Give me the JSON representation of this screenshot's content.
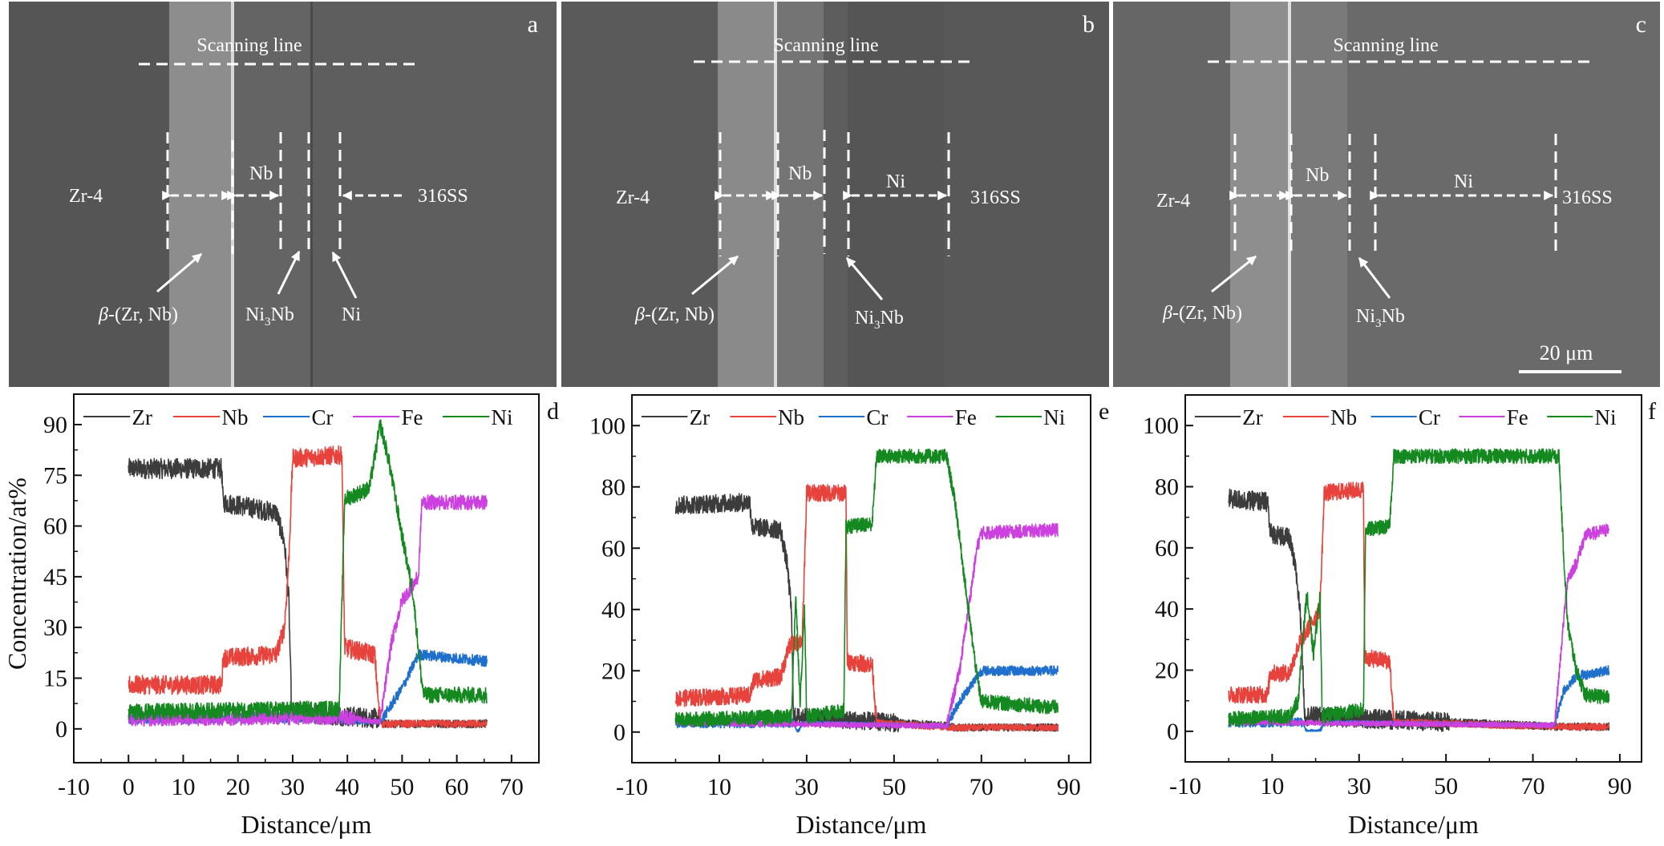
{
  "figure": {
    "sem_panels": [
      {
        "id": "a",
        "letter": "a",
        "scan_label": "Scanning line",
        "labels": {
          "left": "Zr-4",
          "right": "316SS",
          "nb": "Nb",
          "ni": "",
          "beta": "β-(Zr, Nb)",
          "beta_prefix": "β",
          "beta_rest": "-(Zr, Nb)",
          "ni3nb": "Ni",
          "ni3nb_sub": "3",
          "ni3nb_tail": "Nb",
          "ni_arrow": "Ni"
        },
        "background": "#5e5e5e"
      },
      {
        "id": "b",
        "letter": "b",
        "scan_label": "Scanning line",
        "labels": {
          "left": "Zr-4",
          "right": "316SS",
          "nb": "Nb",
          "ni": "Ni",
          "beta_prefix": "β",
          "beta_rest": "-(Zr, Nb)",
          "ni3nb": "Ni",
          "ni3nb_sub": "3",
          "ni3nb_tail": "Nb"
        },
        "background": "#585858"
      },
      {
        "id": "c",
        "letter": "c",
        "scan_label": "Scanning line",
        "labels": {
          "left": "Zr-4",
          "right": "316SS",
          "nb": "Nb",
          "ni": "Ni",
          "beta_prefix": "β",
          "beta_rest": "-(Zr, Nb)",
          "ni3nb": "Ni",
          "ni3nb_sub": "3",
          "ni3nb_tail": "Nb"
        },
        "scale_bar": "20 μm",
        "background": "#6a6a6a"
      }
    ]
  },
  "colors": {
    "Zr": "#3c3c3c",
    "Nb": "#e8423c",
    "Cr": "#1f6fcc",
    "Fe": "#cc40e0",
    "Ni": "#14891f"
  },
  "chart_data": [
    {
      "id": "d",
      "panel_letter": "d",
      "type": "line",
      "title": "",
      "xlabel": "Distance/μm",
      "ylabel": "Concentration/at%",
      "xlim": [
        -10,
        75
      ],
      "ylim": [
        -10,
        99
      ],
      "xticks": [
        -10,
        0,
        10,
        20,
        30,
        40,
        50,
        60,
        70
      ],
      "xtick_labels": [
        "-10",
        "0",
        "10",
        "20",
        "30",
        "40",
        "50",
        "60",
        "70"
      ],
      "yticks": [
        0,
        15,
        30,
        45,
        60,
        75,
        90
      ],
      "ytick_labels": [
        "0",
        "15",
        "30",
        "45",
        "60",
        "75",
        "90"
      ],
      "legend": [
        "Zr",
        "Nb",
        "Cr",
        "Fe",
        "Ni"
      ],
      "legend_position": "top",
      "grid": false,
      "series": [
        {
          "name": "Zr",
          "points": [
            [
              0,
              77
            ],
            [
              17,
              77
            ],
            [
              17.3,
              67
            ],
            [
              27,
              64
            ],
            [
              28.5,
              55
            ],
            [
              29.3,
              38
            ],
            [
              29.8,
              5
            ],
            [
              46,
              3
            ],
            [
              46.3,
              1.5
            ],
            [
              65.5,
              1.5
            ]
          ],
          "noise": 3
        },
        {
          "name": "Nb",
          "points": [
            [
              0,
              13
            ],
            [
              17,
              13
            ],
            [
              17.3,
              21
            ],
            [
              27,
              22
            ],
            [
              28.5,
              30
            ],
            [
              29.3,
              50
            ],
            [
              30,
              80
            ],
            [
              39,
              81
            ],
            [
              39.5,
              24
            ],
            [
              45,
              22
            ],
            [
              45.8,
              5
            ],
            [
              46.3,
              1.5
            ],
            [
              65.5,
              1.5
            ]
          ],
          "noise": 2.8
        },
        {
          "name": "Cr",
          "points": [
            [
              0,
              3
            ],
            [
              38,
              3.5
            ],
            [
              39.5,
              2
            ],
            [
              46,
              2
            ],
            [
              50,
              12
            ],
            [
              53,
              22
            ],
            [
              65.5,
              20
            ]
          ],
          "noise": 1.6
        },
        {
          "name": "Fe",
          "points": [
            [
              0,
              3
            ],
            [
              39,
              3.5
            ],
            [
              46,
              2
            ],
            [
              48,
              25
            ],
            [
              50,
              38
            ],
            [
              53,
              45
            ],
            [
              53.6,
              67
            ],
            [
              65.5,
              67
            ]
          ],
          "noise": 2.2
        },
        {
          "name": "Ni",
          "points": [
            [
              0,
              5
            ],
            [
              38.5,
              6
            ],
            [
              39.5,
              68
            ],
            [
              44,
              71
            ],
            [
              46,
              90
            ],
            [
              47.5,
              80
            ],
            [
              50,
              57
            ],
            [
              52,
              40
            ],
            [
              53.5,
              15
            ],
            [
              54,
              10
            ],
            [
              65.5,
              10
            ]
          ],
          "noise": 2.4
        }
      ]
    },
    {
      "id": "e",
      "panel_letter": "e",
      "type": "line",
      "title": "",
      "xlabel": "Distance/μm",
      "ylabel": "",
      "xlim": [
        -10,
        95
      ],
      "ylim": [
        -10,
        110
      ],
      "xticks": [
        -10,
        10,
        30,
        50,
        70,
        90
      ],
      "xtick_labels": [
        "-10",
        "10",
        "30",
        "50",
        "70",
        "90"
      ],
      "yticks": [
        0,
        20,
        40,
        60,
        80,
        100
      ],
      "ytick_labels": [
        "0",
        "20",
        "40",
        "60",
        "80",
        "100"
      ],
      "legend": [
        "Zr",
        "Nb",
        "Cr",
        "Fe",
        "Ni"
      ],
      "legend_position": "top",
      "grid": false,
      "series": [
        {
          "name": "Zr",
          "points": [
            [
              0,
              74
            ],
            [
              17,
              75
            ],
            [
              17.5,
              67
            ],
            [
              24,
              66
            ],
            [
              25.5,
              55
            ],
            [
              26.5,
              40
            ],
            [
              27,
              5
            ],
            [
              63,
              2
            ],
            [
              63.5,
              1.5
            ],
            [
              87.5,
              1.5
            ]
          ],
          "noise": 3
        },
        {
          "name": "Nb",
          "points": [
            [
              0,
              11
            ],
            [
              17,
              12
            ],
            [
              18,
              17
            ],
            [
              24,
              18
            ],
            [
              26,
              28
            ],
            [
              29,
              30
            ],
            [
              30,
              78
            ],
            [
              39,
              78
            ],
            [
              39.3,
              23
            ],
            [
              45,
              22
            ],
            [
              46,
              3
            ],
            [
              63,
              1.5
            ],
            [
              87.5,
              1.5
            ]
          ],
          "noise": 2.8
        },
        {
          "name": "Cr",
          "points": [
            [
              0,
              3
            ],
            [
              27,
              3
            ],
            [
              28,
              0
            ],
            [
              29,
              3
            ],
            [
              62,
              2
            ],
            [
              65,
              10
            ],
            [
              70,
              20
            ],
            [
              87.5,
              20
            ]
          ],
          "noise": 1.6
        },
        {
          "name": "Fe",
          "points": [
            [
              0,
              3
            ],
            [
              62,
              2
            ],
            [
              65,
              20
            ],
            [
              67,
              40
            ],
            [
              69,
              60
            ],
            [
              70,
              65
            ],
            [
              87.5,
              66
            ]
          ],
          "noise": 2.2
        },
        {
          "name": "Ni",
          "points": [
            [
              0,
              4
            ],
            [
              26.5,
              5
            ],
            [
              27.5,
              45
            ],
            [
              28.5,
              10
            ],
            [
              29.5,
              40
            ],
            [
              30,
              5
            ],
            [
              38.5,
              7
            ],
            [
              39,
              67
            ],
            [
              45,
              68
            ],
            [
              46,
              90
            ],
            [
              62,
              90
            ],
            [
              64,
              75
            ],
            [
              67,
              40
            ],
            [
              69,
              18
            ],
            [
              70,
              10
            ],
            [
              87.5,
              8
            ]
          ],
          "noise": 2.4
        }
      ]
    },
    {
      "id": "f",
      "panel_letter": "f",
      "type": "line",
      "title": "",
      "xlabel": "Distance/μm",
      "ylabel": "",
      "xlim": [
        -10,
        95
      ],
      "ylim": [
        -10,
        110
      ],
      "xticks": [
        -10,
        10,
        30,
        50,
        70,
        90
      ],
      "xtick_labels": [
        "-10",
        "10",
        "30",
        "50",
        "70",
        "90"
      ],
      "yticks": [
        0,
        20,
        40,
        60,
        80,
        100
      ],
      "ytick_labels": [
        "0",
        "20",
        "40",
        "60",
        "80",
        "100"
      ],
      "legend": [
        "Zr",
        "Nb",
        "Cr",
        "Fe",
        "Ni"
      ],
      "legend_position": "top",
      "grid": false,
      "series": [
        {
          "name": "Zr",
          "points": [
            [
              0,
              76
            ],
            [
              9,
              75
            ],
            [
              9.5,
              65
            ],
            [
              14,
              63
            ],
            [
              15.5,
              52
            ],
            [
              16.5,
              38
            ],
            [
              17.5,
              5
            ],
            [
              76,
              1.5
            ],
            [
              87.5,
              1.5
            ]
          ],
          "noise": 3.2
        },
        {
          "name": "Nb",
          "points": [
            [
              0,
              12
            ],
            [
              9,
              12
            ],
            [
              9.5,
              19
            ],
            [
              14,
              19
            ],
            [
              16,
              28
            ],
            [
              21,
              40
            ],
            [
              22,
              78
            ],
            [
              31,
              79
            ],
            [
              31.3,
              24
            ],
            [
              37,
              23
            ],
            [
              38,
              3
            ],
            [
              76,
              1.5
            ],
            [
              87.5,
              1.5
            ]
          ],
          "noise": 2.8
        },
        {
          "name": "Cr",
          "points": [
            [
              0,
              3
            ],
            [
              17,
              3
            ],
            [
              18,
              0
            ],
            [
              21,
              0
            ],
            [
              22,
              3
            ],
            [
              75,
              2
            ],
            [
              77,
              13
            ],
            [
              80,
              18
            ],
            [
              87.5,
              20
            ]
          ],
          "noise": 1.6
        },
        {
          "name": "Fe",
          "points": [
            [
              0,
              3
            ],
            [
              75,
              2
            ],
            [
              77,
              35
            ],
            [
              78,
              50
            ],
            [
              80,
              55
            ],
            [
              82,
              64
            ],
            [
              87.5,
              66
            ]
          ],
          "noise": 2.2
        },
        {
          "name": "Ni",
          "points": [
            [
              0,
              4
            ],
            [
              14,
              5
            ],
            [
              16,
              10
            ],
            [
              17,
              30
            ],
            [
              18,
              45
            ],
            [
              19.5,
              25
            ],
            [
              21,
              45
            ],
            [
              21.5,
              5
            ],
            [
              31,
              7
            ],
            [
              31.5,
              66
            ],
            [
              37,
              67
            ],
            [
              38,
              90
            ],
            [
              76,
              90
            ],
            [
              77,
              60
            ],
            [
              78,
              35
            ],
            [
              80,
              20
            ],
            [
              82,
              12
            ],
            [
              87.5,
              11
            ]
          ],
          "noise": 2.4
        }
      ]
    }
  ]
}
